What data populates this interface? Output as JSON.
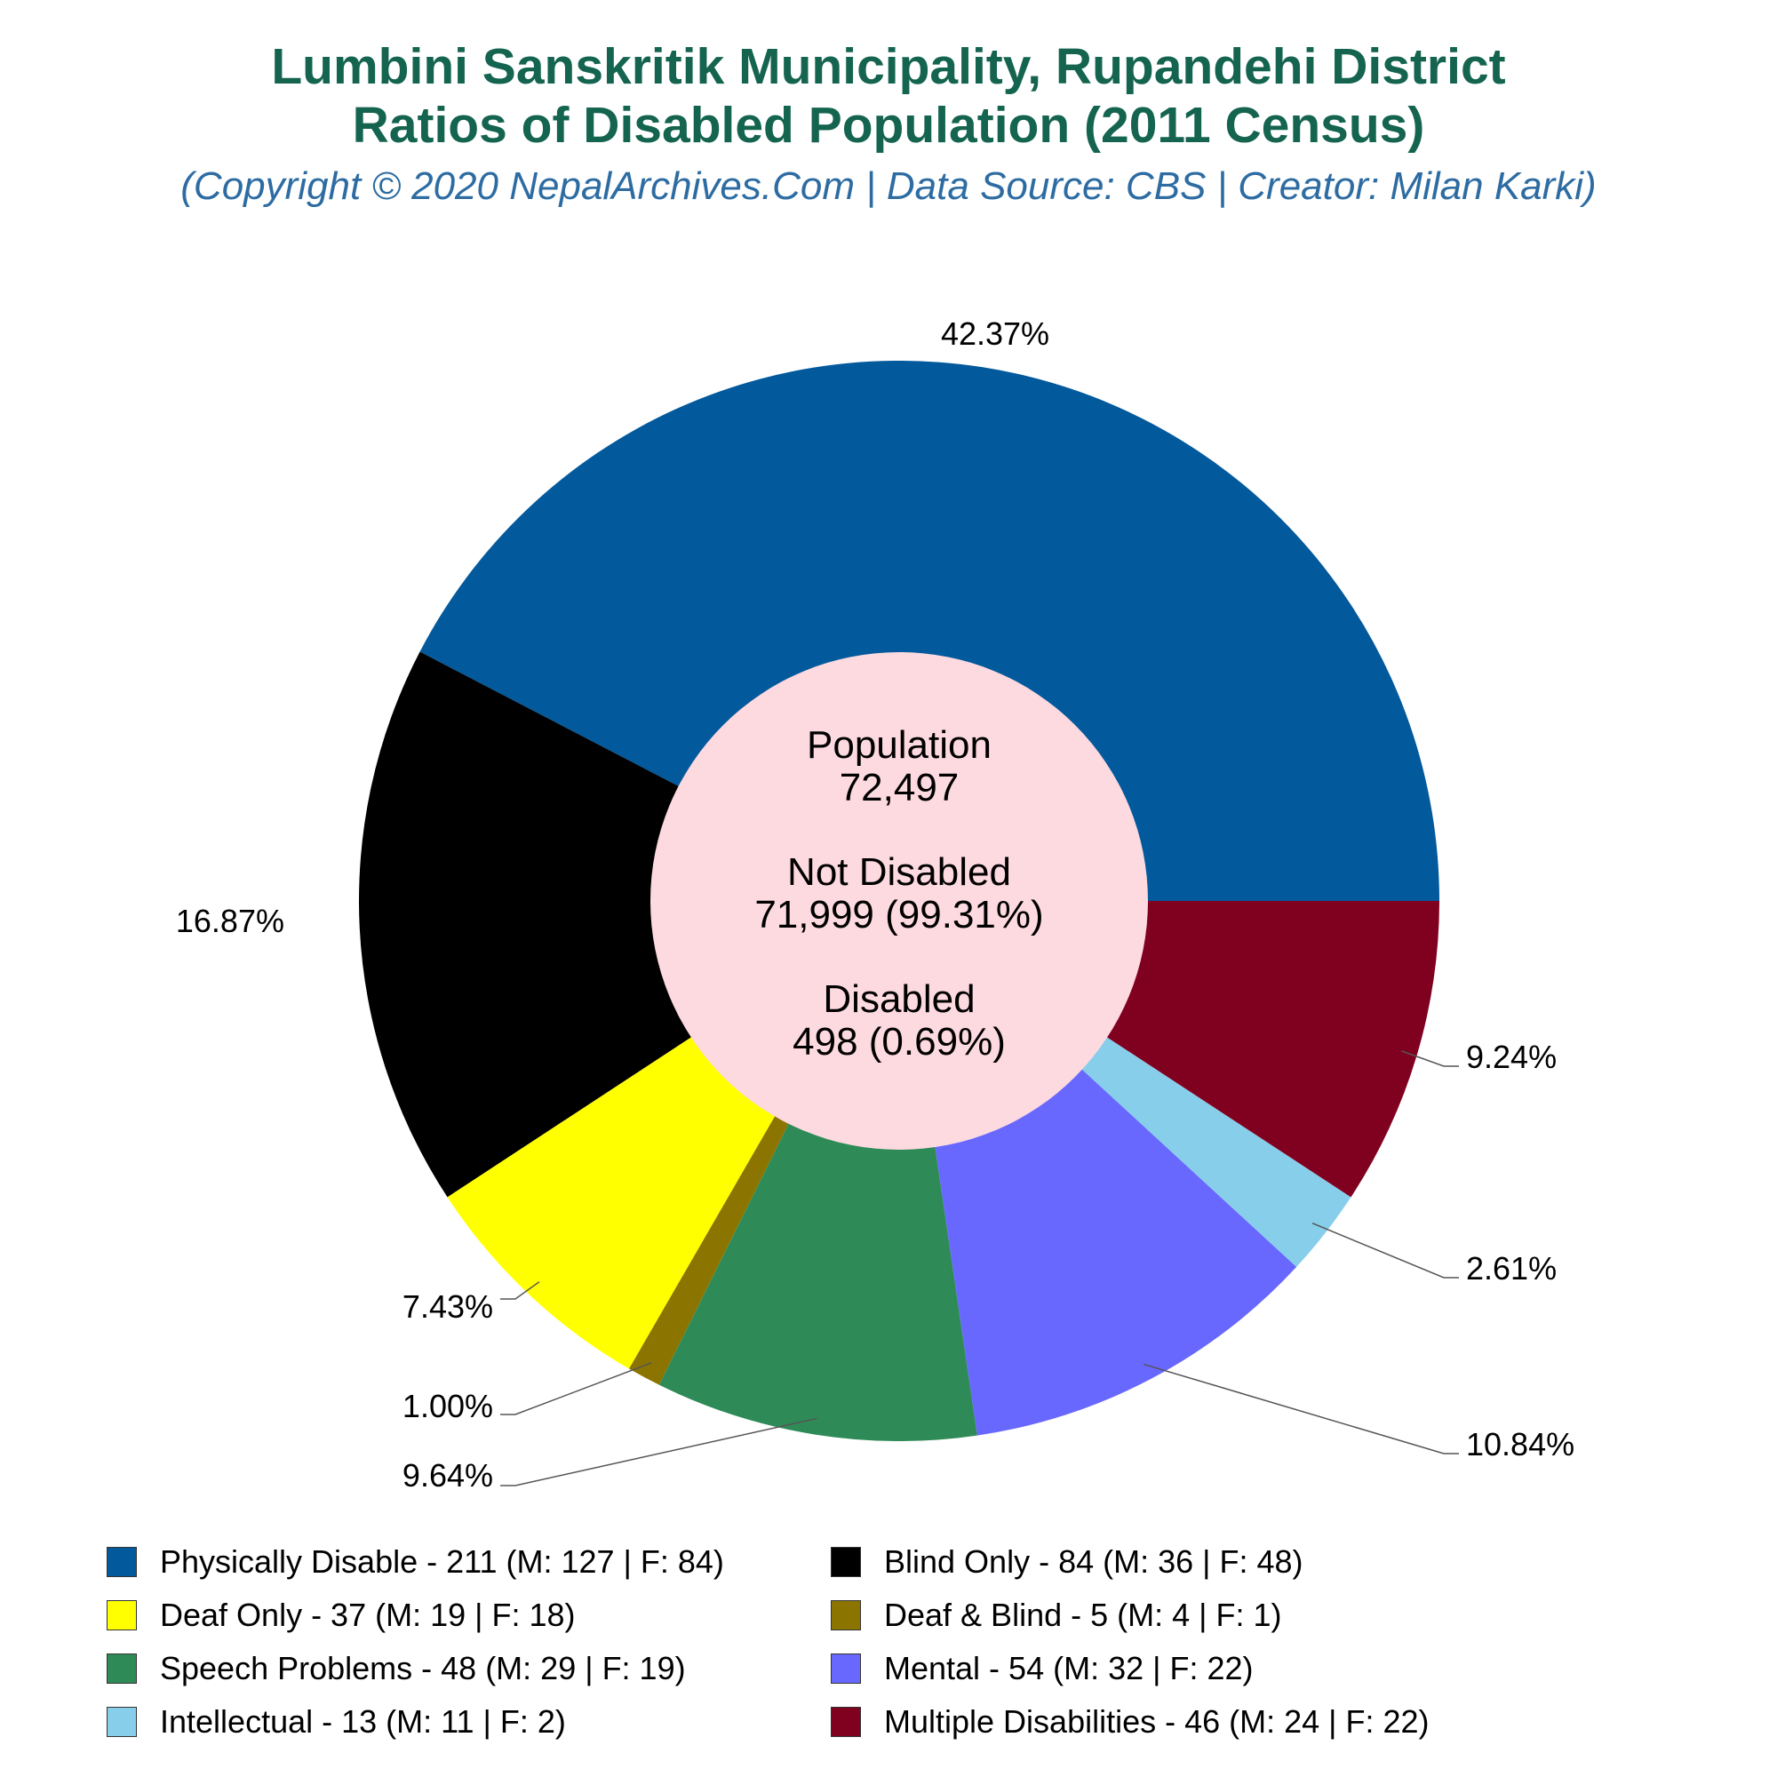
{
  "title_lines": [
    "Lumbini Sanskritik Municipality, Rupandehi District",
    "Ratios of Disabled Population (2011 Census)"
  ],
  "subtitle": "(Copyright © 2020 NepalArchives.Com | Data Source: CBS | Creator: Milan Karki)",
  "center": {
    "population_label": "Population",
    "population_value": "72,497",
    "not_disabled_label": "Not Disabled",
    "not_disabled_value": "71,999 (99.31%)",
    "disabled_label": "Disabled",
    "disabled_value": "498 (0.69%)",
    "fill": "#fdd9e0"
  },
  "chart_data": {
    "type": "pie",
    "title": "Lumbini Sanskritik Municipality, Rupandehi District\nRatios of Disabled Population (2011 Census)",
    "categories": [
      "Physically Disable",
      "Blind Only",
      "Deaf Only",
      "Deaf & Blind",
      "Speech Problems",
      "Mental",
      "Intellectual",
      "Multiple Disabilities"
    ],
    "values": [
      211,
      84,
      37,
      5,
      48,
      54,
      13,
      46
    ],
    "male": [
      127,
      36,
      19,
      4,
      29,
      32,
      11,
      24
    ],
    "female": [
      84,
      48,
      18,
      1,
      19,
      22,
      2,
      22
    ],
    "percent_labels": [
      "42.37%",
      "16.87%",
      "7.43%",
      "1.00%",
      "9.64%",
      "10.84%",
      "2.61%",
      "9.24%"
    ],
    "colors": [
      "#02599c",
      "#000000",
      "#ffff00",
      "#8b7500",
      "#2e8b57",
      "#6868ff",
      "#87ceeb",
      "#800020"
    ],
    "legend_labels": [
      "Physically Disable - 211 (M: 127 | F: 84)",
      "Blind Only - 84 (M: 36 | F: 48)",
      "Deaf Only - 37 (M: 19 | F: 18)",
      "Deaf & Blind - 5 (M: 4 | F: 1)",
      "Speech Problems - 48 (M: 29 | F: 19)",
      "Mental - 54 (M: 32 | F: 22)",
      "Intellectual - 13 (M: 11 | F: 2)",
      "Multiple Disabilities - 46 (M: 24 | F: 22)"
    ],
    "start_angle": "3 o'clock",
    "direction": "counter-clockwise",
    "legend_position": "bottom"
  }
}
